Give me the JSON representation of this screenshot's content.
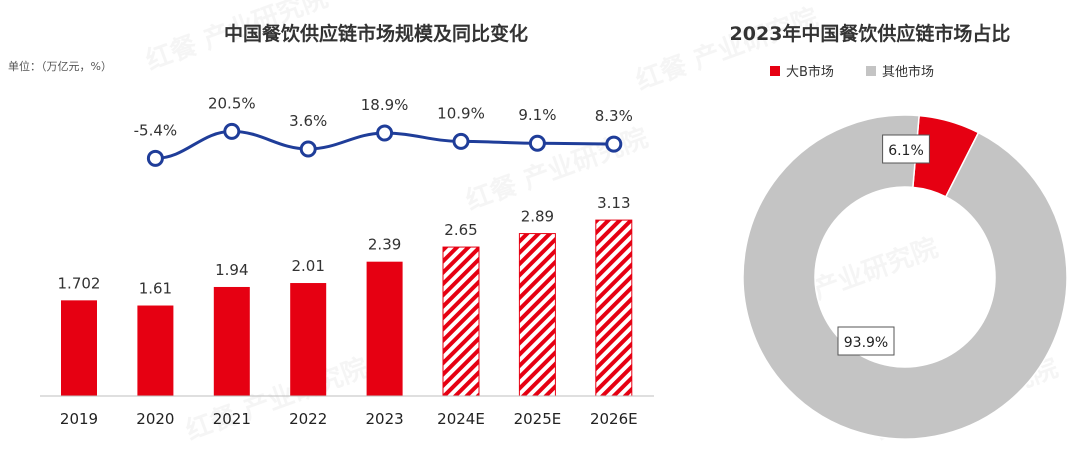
{
  "chart_data": [
    {
      "type": "bar",
      "title": "中国餐饮供应链市场规模及同比变化",
      "unit_note": "单位：（万亿元，%）",
      "categories": [
        "2019",
        "2020",
        "2021",
        "2022",
        "2023",
        "2024E",
        "2025E",
        "2026E"
      ],
      "series": [
        {
          "type": "bar",
          "values": [
            1.702,
            1.61,
            1.94,
            2.01,
            2.39,
            2.65,
            2.89,
            3.13
          ],
          "labels": [
            "1.702",
            "1.61",
            "1.94",
            "2.01",
            "2.39",
            "2.65",
            "2.89",
            "3.13"
          ],
          "forecast": [
            false,
            false,
            false,
            false,
            false,
            true,
            true,
            true
          ]
        },
        {
          "type": "line",
          "values": [
            null,
            -5.4,
            20.5,
            3.6,
            18.9,
            10.9,
            9.1,
            8.3
          ],
          "labels": [
            "",
            "-5.4%",
            "20.5%",
            "3.6%",
            "18.9%",
            "10.9%",
            "9.1%",
            "8.3%"
          ]
        }
      ],
      "colors": {
        "bar": "#e60012",
        "line": "#1f3d99"
      },
      "grid": false
    },
    {
      "type": "pie",
      "title": "2023年中国餐饮供应链市场占比",
      "slices": [
        {
          "label": "大B市场",
          "value": 6.1,
          "text": "6.1%",
          "color": "#e60012"
        },
        {
          "label": "其他市场",
          "value": 93.9,
          "text": "93.9%",
          "color": "#c4c4c4"
        }
      ],
      "legend_position": "top"
    }
  ],
  "watermark": "红餐 产业研究院"
}
